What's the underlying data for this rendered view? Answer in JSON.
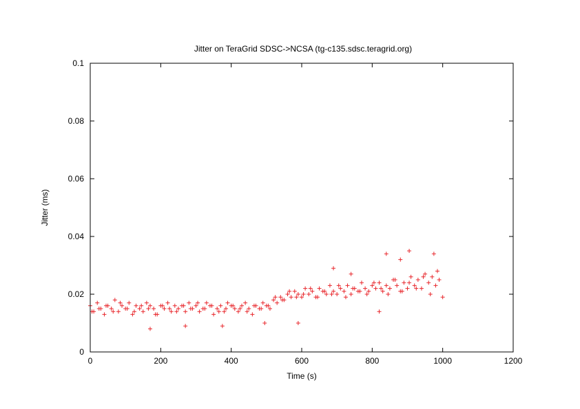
{
  "chart_data": {
    "type": "scatter",
    "title": "Jitter on TeraGrid SDSC->NCSA (tg-c135.sdsc.teragrid.org)",
    "xlabel": "Time (s)",
    "ylabel": "Jitter (ms)",
    "xlim": [
      0,
      1200
    ],
    "ylim": [
      0,
      0.1
    ],
    "x_ticks": [
      0,
      200,
      400,
      600,
      800,
      1000,
      1200
    ],
    "x_tick_labels": [
      "0",
      "200",
      "400",
      "600",
      "800",
      "1000",
      "1200"
    ],
    "y_ticks": [
      0,
      0.02,
      0.04,
      0.06,
      0.08,
      0.1
    ],
    "y_tick_labels": [
      "0",
      "0.02",
      "0.04",
      "0.06",
      "0.08",
      "0.1"
    ],
    "grid": false,
    "legend": "none",
    "marker": "plus",
    "point_color": "#e8262b",
    "x": [
      0,
      10,
      20,
      30,
      40,
      50,
      60,
      70,
      80,
      90,
      100,
      110,
      120,
      130,
      140,
      150,
      160,
      170,
      180,
      190,
      200,
      210,
      220,
      230,
      240,
      250,
      260,
      270,
      280,
      290,
      300,
      310,
      320,
      330,
      340,
      350,
      360,
      370,
      380,
      390,
      400,
      410,
      420,
      430,
      440,
      450,
      460,
      470,
      480,
      490,
      500,
      510,
      520,
      530,
      540,
      550,
      560,
      570,
      580,
      590,
      600,
      610,
      620,
      630,
      640,
      650,
      660,
      670,
      680,
      690,
      700,
      710,
      720,
      730,
      740,
      750,
      760,
      770,
      780,
      790,
      800,
      810,
      820,
      830,
      840,
      850,
      860,
      870,
      880,
      890,
      900,
      910,
      920,
      930,
      940,
      950,
      960,
      970,
      980,
      990,
      1000,
      5,
      25,
      45,
      65,
      85,
      105,
      125,
      145,
      165,
      185,
      205,
      225,
      245,
      265,
      285,
      305,
      325,
      345,
      365,
      385,
      405,
      425,
      445,
      465,
      485,
      505,
      525,
      545,
      565,
      585,
      605,
      625,
      645,
      665,
      685,
      705,
      725,
      745,
      765,
      785,
      805,
      825,
      845,
      865,
      885,
      905,
      925,
      945,
      965,
      985,
      170,
      270,
      375,
      495,
      590,
      690,
      740,
      820,
      840,
      880,
      905,
      975
    ],
    "y": [
      0.016,
      0.014,
      0.017,
      0.015,
      0.013,
      0.016,
      0.015,
      0.018,
      0.014,
      0.016,
      0.015,
      0.017,
      0.013,
      0.016,
      0.015,
      0.014,
      0.017,
      0.016,
      0.015,
      0.013,
      0.016,
      0.015,
      0.017,
      0.014,
      0.016,
      0.015,
      0.016,
      0.014,
      0.017,
      0.015,
      0.016,
      0.014,
      0.015,
      0.017,
      0.016,
      0.013,
      0.015,
      0.016,
      0.014,
      0.017,
      0.016,
      0.015,
      0.014,
      0.016,
      0.017,
      0.015,
      0.013,
      0.016,
      0.015,
      0.017,
      0.016,
      0.015,
      0.018,
      0.017,
      0.019,
      0.018,
      0.02,
      0.019,
      0.021,
      0.02,
      0.019,
      0.022,
      0.02,
      0.021,
      0.019,
      0.022,
      0.021,
      0.02,
      0.023,
      0.021,
      0.02,
      0.022,
      0.021,
      0.023,
      0.02,
      0.022,
      0.021,
      0.024,
      0.022,
      0.021,
      0.023,
      0.022,
      0.024,
      0.021,
      0.023,
      0.022,
      0.025,
      0.023,
      0.021,
      0.024,
      0.022,
      0.026,
      0.023,
      0.025,
      0.022,
      0.027,
      0.024,
      0.026,
      0.023,
      0.025,
      0.019,
      0.014,
      0.015,
      0.016,
      0.014,
      0.017,
      0.015,
      0.014,
      0.016,
      0.015,
      0.013,
      0.016,
      0.015,
      0.014,
      0.016,
      0.015,
      0.017,
      0.015,
      0.016,
      0.014,
      0.015,
      0.016,
      0.015,
      0.014,
      0.016,
      0.015,
      0.016,
      0.019,
      0.018,
      0.021,
      0.019,
      0.02,
      0.022,
      0.019,
      0.021,
      0.02,
      0.023,
      0.019,
      0.022,
      0.021,
      0.02,
      0.024,
      0.022,
      0.02,
      0.025,
      0.021,
      0.024,
      0.022,
      0.026,
      0.02,
      0.028,
      0.008,
      0.009,
      0.009,
      0.01,
      0.01,
      0.029,
      0.027,
      0.014,
      0.034,
      0.032,
      0.035,
      0.034
    ]
  }
}
